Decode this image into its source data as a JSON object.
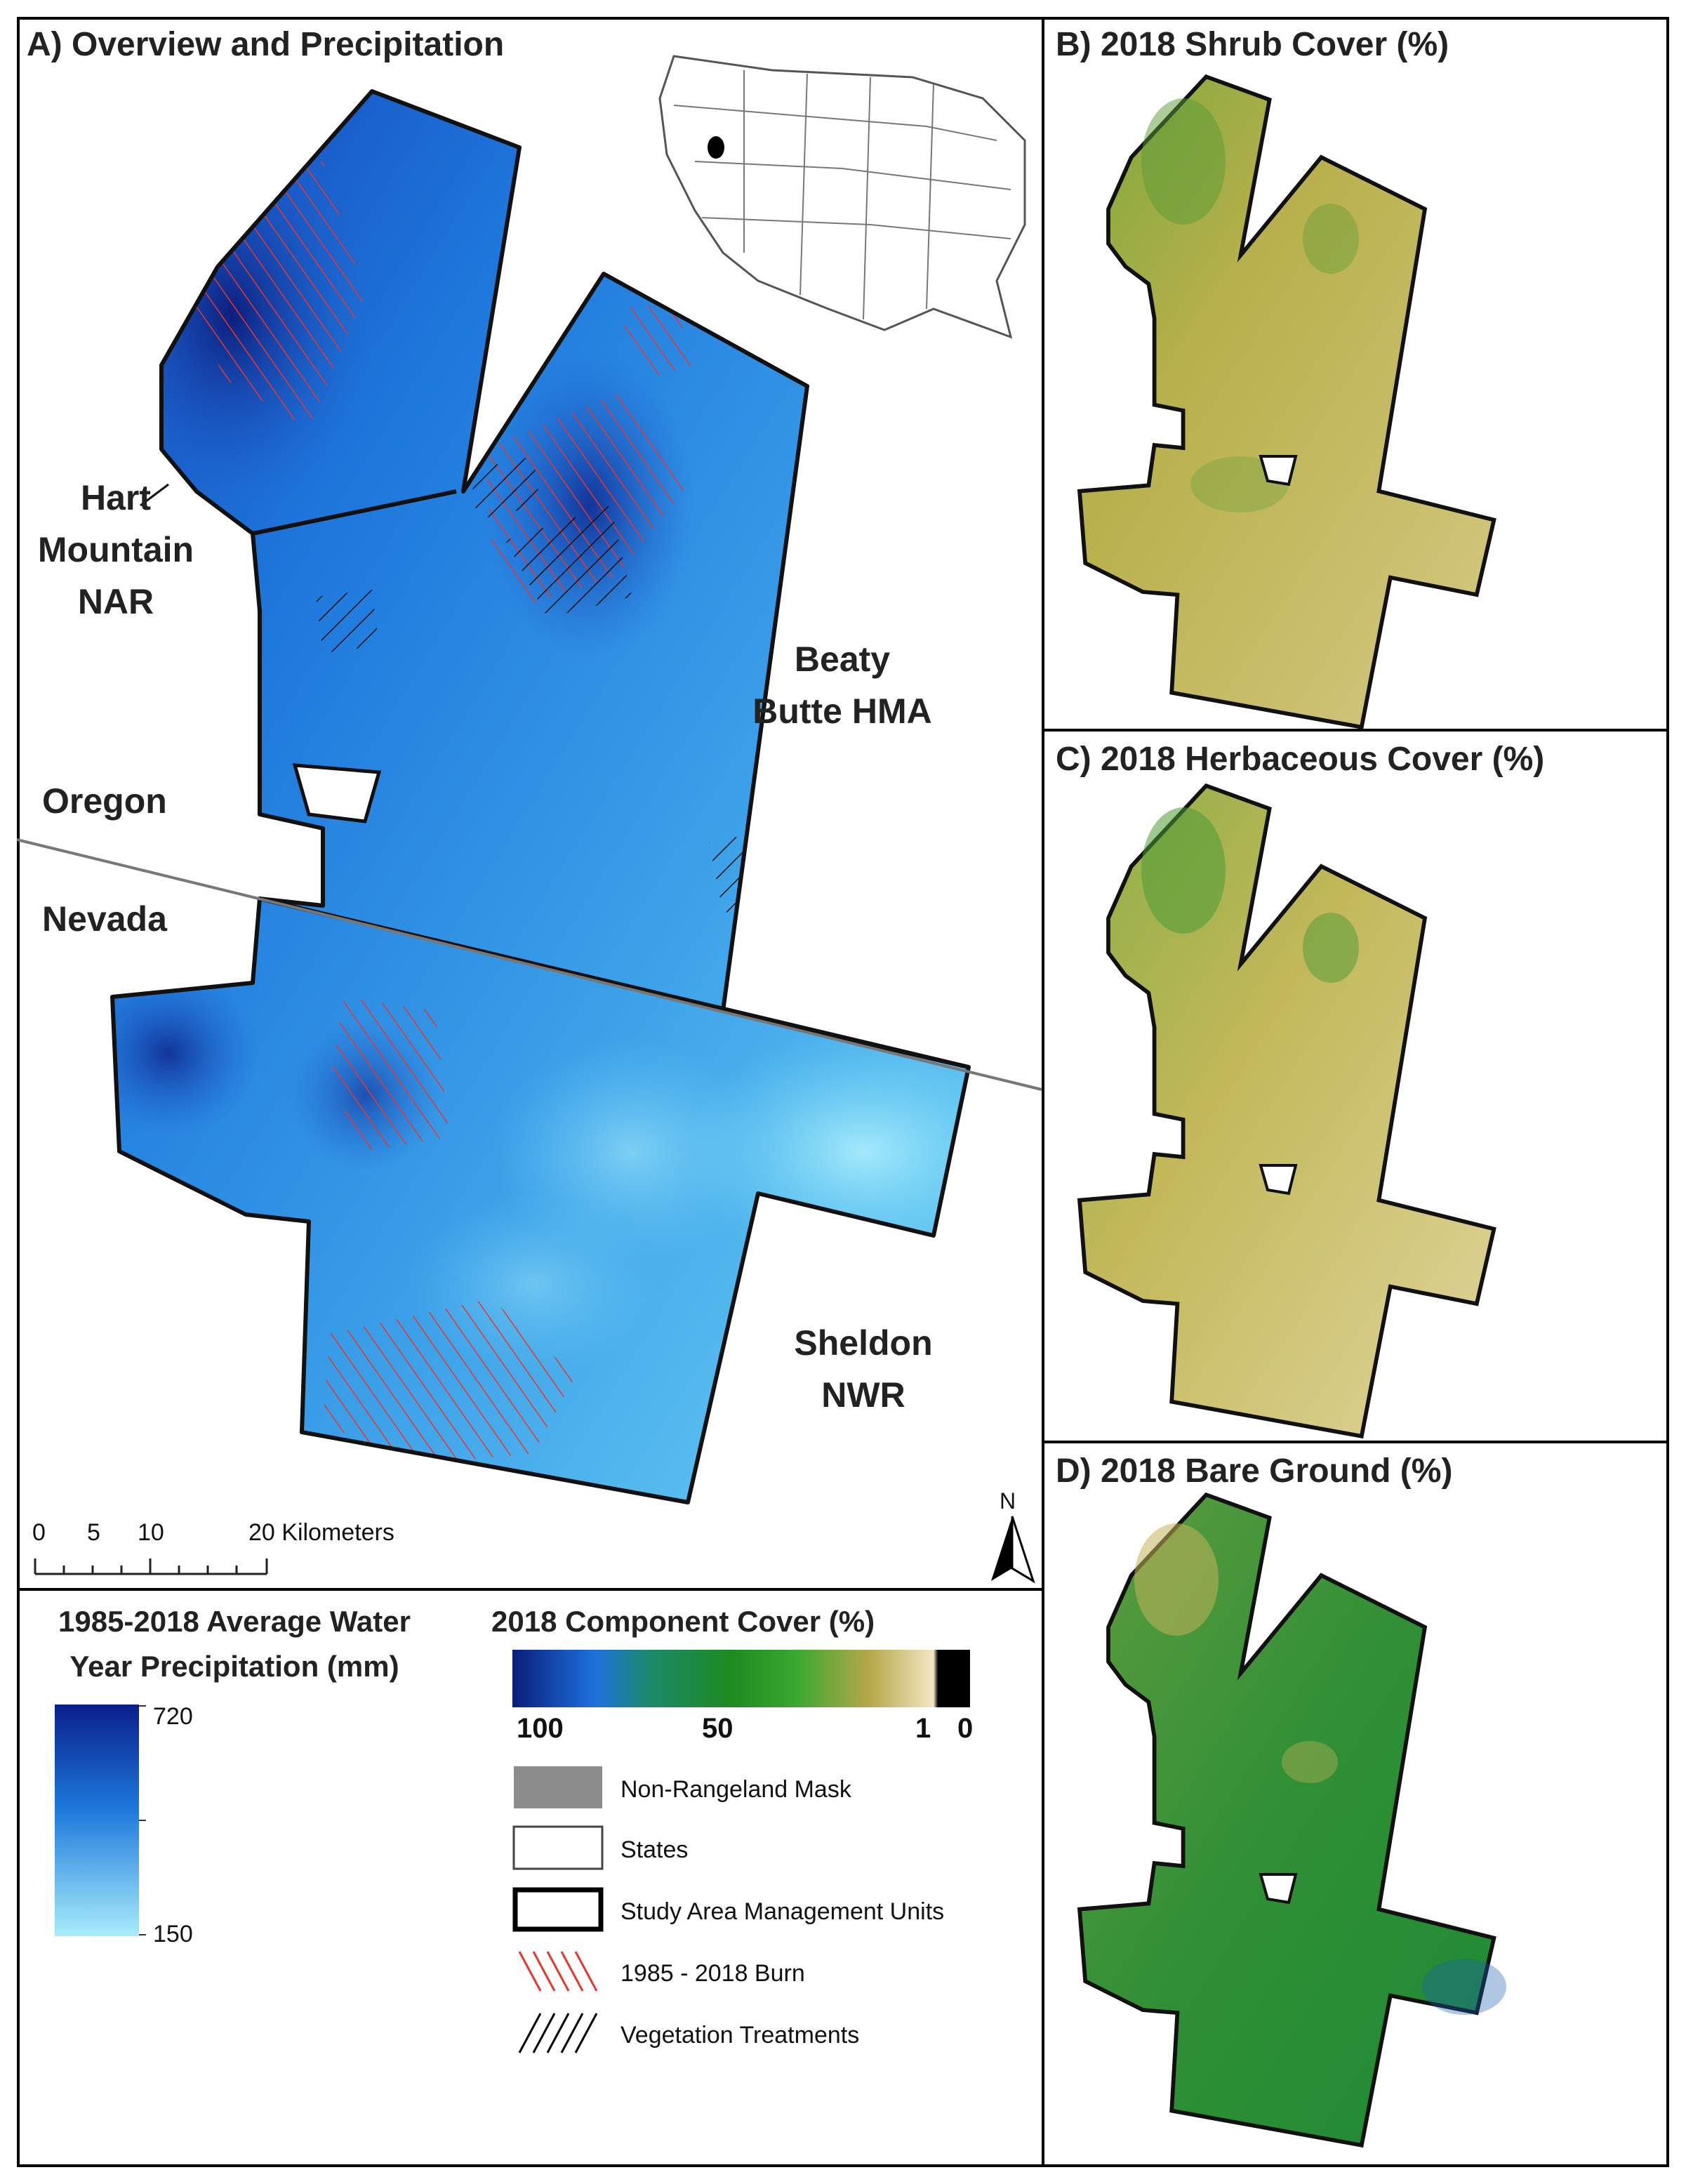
{
  "panels": {
    "a_title": "A) Overview and Precipitation",
    "b_title": "B) 2018 Shrub Cover (%)",
    "c_title": "C) 2018 Herbaceous Cover (%)",
    "d_title": "D) 2018 Bare Ground (%)"
  },
  "map_labels": {
    "hart": "Hart Mountain NAR",
    "beaty": "Beaty Butte HMA",
    "oregon": "Oregon",
    "nevada": "Nevada",
    "sheldon": "Sheldon NWR",
    "north": "N"
  },
  "scale_bar": {
    "ticks": [
      "0",
      "5",
      "10",
      "20 Kilometers"
    ]
  },
  "precip_legend": {
    "title": "1985-2018 Average Water Year Precipitation (mm)",
    "max": "720",
    "min": "150",
    "color_high": "#0a1e8a",
    "color_low": "#a8ecfb"
  },
  "cover_legend": {
    "title": "2018 Component Cover (%)",
    "tick_100": "100",
    "tick_50": "50",
    "tick_1": "1",
    "tick_0": "0",
    "items": [
      {
        "label": "Non-Rangeland Mask",
        "symbol": "gray-fill",
        "color": "#8c8c8c"
      },
      {
        "label": "States",
        "symbol": "thin-outline",
        "color": "#000000"
      },
      {
        "label": "Study Area Management Units",
        "symbol": "thick-outline",
        "color": "#000000"
      },
      {
        "label": "1985 - 2018 Burn",
        "symbol": "red-hatch",
        "color": "#e8362d"
      },
      {
        "label": "Vegetation Treatments",
        "symbol": "black-hatch",
        "color": "#000000"
      }
    ]
  },
  "colors": {
    "shrub": "#c4b95a",
    "herb": "#cfc06a",
    "bare": "#3d9a3a",
    "burn": "#e8362d"
  }
}
